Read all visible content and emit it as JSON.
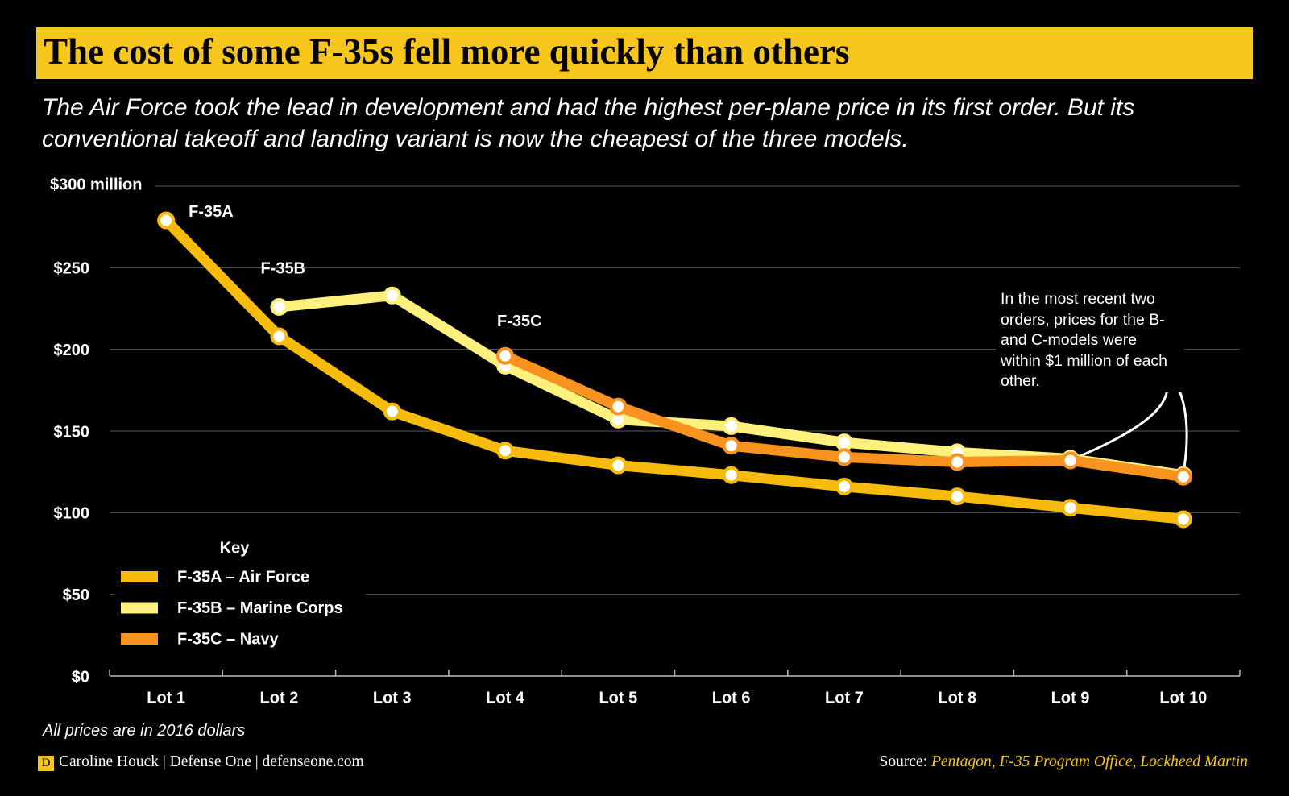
{
  "chart_data": {
    "type": "line",
    "title": "The cost of some F-35s fell more quickly than others",
    "subtitle": "The Air Force took the lead in development and had the highest per-plane price in its first order. But its conventional takeoff and landing variant is now the cheapest of the three models.",
    "categories": [
      "Lot 1",
      "Lot 2",
      "Lot 3",
      "Lot 4",
      "Lot 5",
      "Lot 6",
      "Lot 7",
      "Lot 8",
      "Lot 9",
      "Lot 10"
    ],
    "series": [
      {
        "name": "F-35A – Air Force",
        "label": "F-35A",
        "color": "#f6bb0c",
        "values": [
          279,
          208,
          162,
          138,
          129,
          123,
          116,
          110,
          103,
          96
        ]
      },
      {
        "name": "F-35B – Marine Corps",
        "label": "F-35B",
        "color": "#fdf07c",
        "values": [
          null,
          226,
          233,
          190,
          157,
          153,
          143,
          137,
          133,
          123
        ]
      },
      {
        "name": "F-35C – Navy",
        "label": "F-35C",
        "color": "#f7931e",
        "values": [
          null,
          null,
          null,
          196,
          165,
          141,
          134,
          131,
          132,
          122
        ]
      }
    ],
    "ylim": [
      0,
      300
    ],
    "yticks": [
      {
        "value": 0,
        "label": "$0"
      },
      {
        "value": 50,
        "label": "$50"
      },
      {
        "value": 100,
        "label": "$100"
      },
      {
        "value": 150,
        "label": "$150"
      },
      {
        "value": 200,
        "label": "$200"
      },
      {
        "value": 250,
        "label": "$250"
      },
      {
        "value": 300,
        "label": "$300 million"
      }
    ],
    "grid": true,
    "legend_title": "Key",
    "annotation": "In the most recent two orders, prices for the B- and C-models were within $1 million of each other.",
    "note": "All prices are in 2016 dollars",
    "logo": "D",
    "byline": "Caroline Houck | Defense One | defenseone.com",
    "source_label": "Source:",
    "source": "Pentagon, F-35 Program Office, Lockheed Martin"
  }
}
